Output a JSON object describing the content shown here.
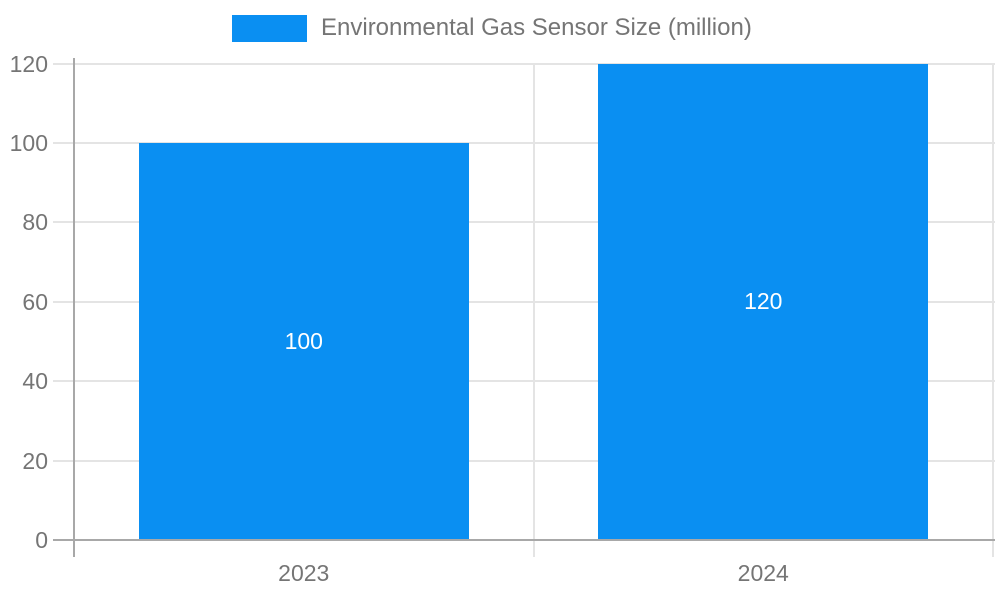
{
  "legend": {
    "label": "Environmental Gas Sensor Size (million)",
    "position": "top-center"
  },
  "chart_data": {
    "type": "bar",
    "title": "Environmental Gas Sensor Size (million)",
    "categories": [
      "2023",
      "2024"
    ],
    "series": [
      {
        "name": "Environmental Gas Sensor Size (million)",
        "values": [
          100,
          120
        ]
      }
    ],
    "values": [
      100,
      120
    ],
    "data_labels": [
      "100",
      "120"
    ],
    "xlabel": "",
    "ylabel": "",
    "ylim": [
      0,
      120
    ],
    "yticks": [
      0,
      20,
      40,
      60,
      80,
      100,
      120
    ],
    "grid": "horizontal",
    "legend_position": "top",
    "colors": {
      "bar": "#0A8FF2",
      "data_label": "#FFFFFF",
      "axis_text": "#757575",
      "axis_line": "#A8A8A8",
      "gridline": "#E4E4E4",
      "background": "#FFFFFF"
    }
  }
}
